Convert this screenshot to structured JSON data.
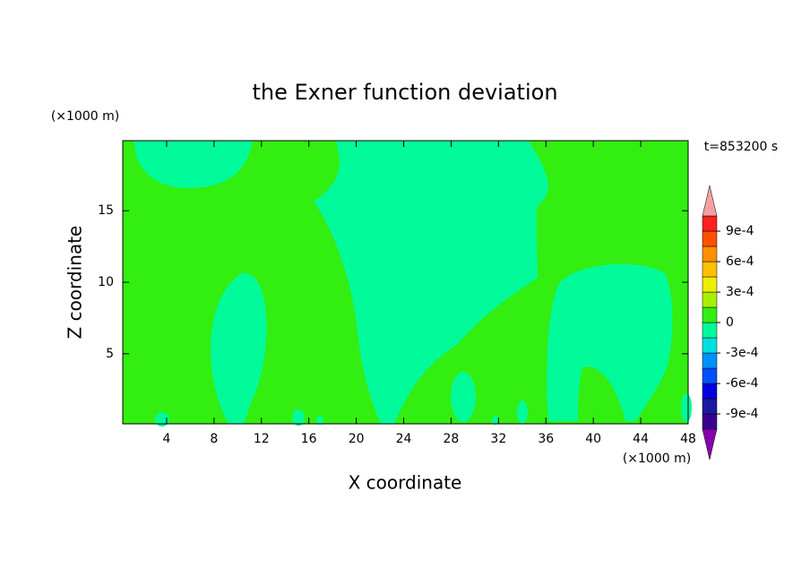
{
  "chart_data": {
    "type": "contour",
    "title": "the Exner function deviation",
    "xlabel": "X coordinate",
    "ylabel": "Z coordinate",
    "x_unit": "(×1000 m)",
    "y_unit": "(×1000 m)",
    "annotation": "t=853200 s",
    "xlim": [
      0.3,
      48
    ],
    "ylim": [
      0.1,
      19.9
    ],
    "xticks": [
      4,
      8,
      12,
      16,
      20,
      24,
      28,
      32,
      36,
      40,
      44,
      48
    ],
    "yticks": [
      5,
      10,
      15
    ],
    "colorbar": {
      "levels": [
        -0.00105,
        -0.0009,
        -0.00075,
        -0.0006,
        -0.00045,
        -0.0003,
        -0.00015,
        0,
        0.00015,
        0.0003,
        0.00045,
        0.0006,
        0.00075,
        0.0009,
        0.00105
      ],
      "colors": [
        "#3a0090",
        "#1a1aa0",
        "#0000e0",
        "#0050ff",
        "#0090ff",
        "#00e0e0",
        "#00fa9a",
        "#33ee11",
        "#aaee00",
        "#eeee00",
        "#ffc000",
        "#ff9000",
        "#ff5000",
        "#ff2020"
      ],
      "extend_colors": [
        "#8800aa",
        "#f4a0a0"
      ],
      "ticks": [
        {
          "value": 0.0009,
          "label": "9e-4"
        },
        {
          "value": 0.0006,
          "label": "6e-4"
        },
        {
          "value": 0.0003,
          "label": "3e-4"
        },
        0,
        {
          "value": -0.0003,
          "label": "-3e-4"
        },
        {
          "value": -0.0006,
          "label": "-6e-4"
        },
        {
          "value": -0.0009,
          "label": "-9e-4"
        }
      ]
    }
  }
}
